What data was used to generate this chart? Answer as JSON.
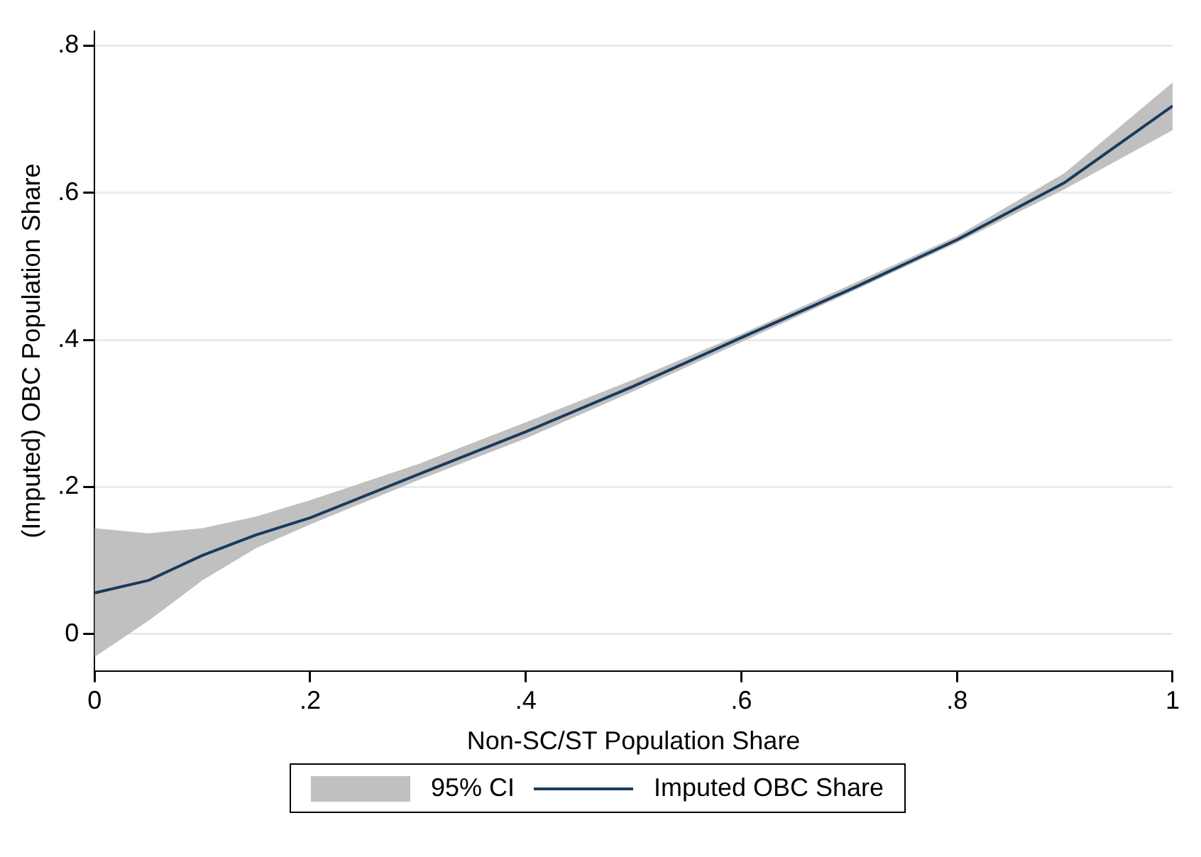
{
  "chart_data": {
    "type": "line",
    "xlabel": "Non-SC/ST Population Share",
    "ylabel": "(Imputed) OBC Population Share",
    "x": [
      0,
      0.05,
      0.1,
      0.15,
      0.2,
      0.3,
      0.4,
      0.5,
      0.6,
      0.7,
      0.8,
      0.9,
      1
    ],
    "series": [
      {
        "name": "Imputed OBC Share",
        "color": "#1a3a5c",
        "values": [
          0.056,
          0.073,
          0.107,
          0.135,
          0.158,
          0.217,
          0.275,
          0.337,
          0.403,
          0.468,
          0.536,
          0.614,
          0.718
        ],
        "lower": [
          -0.031,
          0.018,
          0.073,
          0.117,
          0.149,
          0.209,
          0.266,
          0.33,
          0.397,
          0.464,
          0.532,
          0.605,
          0.685
        ],
        "upper": [
          0.144,
          0.137,
          0.144,
          0.16,
          0.182,
          0.231,
          0.288,
          0.346,
          0.408,
          0.474,
          0.541,
          0.627,
          0.75
        ]
      }
    ],
    "annotations": [
      "95% CI"
    ],
    "xlim": [
      0,
      1
    ],
    "xticks": [
      0,
      {
        "value": 0.2,
        "label": ".2"
      },
      {
        "value": 0.4,
        "label": ".4"
      },
      {
        "value": 0.6,
        "label": ".6"
      },
      {
        "value": 0.8,
        "label": ".8"
      },
      1
    ],
    "ylim": [
      -0.05,
      0.82
    ],
    "yticks": [
      0,
      {
        "value": 0.2,
        "label": ".2"
      },
      {
        "value": 0.4,
        "label": ".4"
      },
      {
        "value": 0.6,
        "label": ".6"
      },
      {
        "value": 0.8,
        "label": ".8"
      }
    ],
    "grid": "y",
    "legend": "bottom",
    "marker": "none",
    "line_style": "solid"
  }
}
